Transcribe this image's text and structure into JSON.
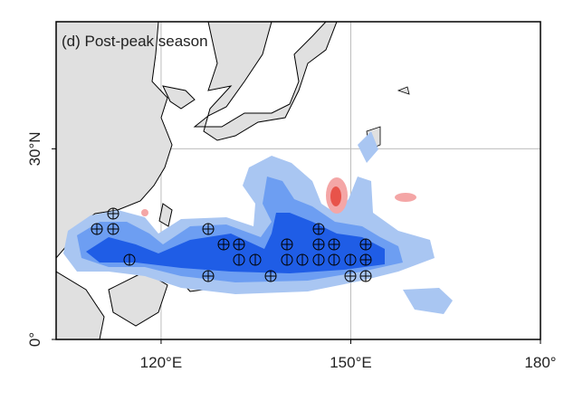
{
  "map": {
    "title": "(d) Post-peak season",
    "xlim": [
      103.4,
      180
    ],
    "ylim": [
      0,
      50
    ],
    "xticks": [
      {
        "value": 120,
        "label": "120°E"
      },
      {
        "value": 150,
        "label": "150°E"
      },
      {
        "value": 180,
        "label": "180°"
      }
    ],
    "yticks": [
      {
        "value": 0,
        "label": "0°"
      },
      {
        "value": 30,
        "label": "30°N"
      }
    ],
    "grid": true
  }
}
